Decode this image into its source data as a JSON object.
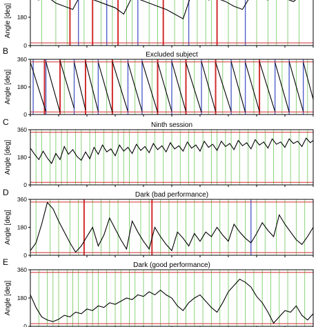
{
  "chart_data": [
    {
      "type": "line",
      "letter": "",
      "title": "",
      "ylabel": "Angle [deg]",
      "yticks": [
        "0",
        "180"
      ],
      "ylim": [
        0,
        360
      ],
      "red_hlines": [
        17,
        343
      ],
      "x": [
        0,
        3,
        6,
        9,
        12,
        15,
        18,
        21,
        24,
        27,
        30,
        33,
        36,
        39,
        42,
        45,
        48,
        51,
        54,
        57,
        60,
        63,
        66,
        69,
        72,
        75,
        78,
        81,
        84,
        87,
        90,
        93,
        96,
        99
      ],
      "values": [
        300,
        290,
        310,
        270,
        250,
        230,
        330,
        300,
        280,
        260,
        240,
        200,
        310,
        290,
        270,
        250,
        230,
        200,
        170,
        330,
        310,
        290,
        300,
        280,
        250,
        230,
        320,
        300,
        290,
        310,
        300,
        280,
        320,
        300
      ],
      "blue_lines": [
        17,
        27,
        38,
        56,
        76
      ],
      "red_lines": [
        14,
        22,
        31,
        47,
        66
      ],
      "green_lines": [
        4,
        9,
        13,
        19,
        25,
        29,
        34,
        36,
        42,
        45,
        51,
        54,
        59,
        62,
        64,
        70,
        73,
        80,
        84,
        87,
        91,
        95
      ]
    },
    {
      "type": "line",
      "letter": "B",
      "title": "Excluded subject",
      "ylabel": "Angle [deg]",
      "yticks": [
        "0",
        "180",
        "360"
      ],
      "ylim": [
        0,
        360
      ],
      "red_hlines": [
        17,
        343
      ],
      "sawtooth_cycles": [
        [
          0,
          5.5,
          340,
          20
        ],
        [
          5.5,
          10.5,
          345,
          15
        ],
        [
          10.5,
          15.5,
          350,
          40
        ],
        [
          15.5,
          19.5,
          340,
          30
        ],
        [
          19.5,
          24,
          345,
          20
        ],
        [
          24,
          29,
          340,
          15
        ],
        [
          29,
          34.5,
          345,
          20
        ],
        [
          34.5,
          39.5,
          340,
          20
        ],
        [
          39.5,
          45,
          345,
          15
        ],
        [
          45,
          50,
          340,
          20
        ],
        [
          50,
          55,
          345,
          20
        ],
        [
          55,
          60.5,
          340,
          15
        ],
        [
          60.5,
          65.5,
          345,
          20
        ],
        [
          65.5,
          71,
          340,
          20
        ],
        [
          71,
          76,
          345,
          15
        ],
        [
          76,
          81,
          340,
          20
        ],
        [
          81,
          86.5,
          345,
          20
        ],
        [
          86.5,
          91.5,
          340,
          15
        ],
        [
          91.5,
          96.5,
          345,
          20
        ],
        [
          96.5,
          100,
          340,
          100
        ]
      ],
      "blue_lines": [
        1,
        5.5,
        15.5,
        24,
        34.5,
        39.5,
        50,
        60.5,
        71,
        76,
        86.5,
        91.5,
        96.5
      ],
      "red_lines": [
        5,
        10.5,
        19.5,
        29,
        45,
        55,
        65.5,
        81
      ],
      "green_lines": [
        12,
        22,
        27,
        32,
        37,
        43,
        48,
        53,
        58,
        63,
        68,
        74,
        79,
        84,
        89,
        94,
        98
      ]
    },
    {
      "type": "line",
      "letter": "C",
      "title": "Ninth session",
      "ylabel": "Angle [deg]",
      "yticks": [
        "0",
        "180",
        "360"
      ],
      "ylim": [
        0,
        360
      ],
      "red_hlines": [
        17,
        343
      ],
      "x": [
        0,
        1.5,
        3,
        4.5,
        6,
        7.5,
        9,
        10.5,
        12,
        13.5,
        15,
        16.5,
        18,
        19.5,
        21,
        22.5,
        24,
        25.5,
        27,
        28.5,
        30,
        31.5,
        33,
        34.5,
        36,
        37.5,
        39,
        40.5,
        42,
        43.5,
        45,
        46.5,
        48,
        49.5,
        51,
        52.5,
        54,
        55.5,
        57,
        58.5,
        60,
        61.5,
        63,
        64.5,
        66,
        67.5,
        69,
        70.5,
        72,
        73.5,
        75,
        76.5,
        78,
        79.5,
        81,
        82.5,
        84,
        85.5,
        87,
        88.5,
        90,
        91.5,
        93,
        94.5,
        96,
        97.5,
        99,
        100
      ],
      "values": [
        240,
        200,
        165,
        220,
        175,
        140,
        205,
        165,
        250,
        200,
        230,
        185,
        160,
        215,
        170,
        245,
        200,
        260,
        215,
        235,
        190,
        260,
        220,
        245,
        205,
        265,
        225,
        250,
        210,
        270,
        230,
        255,
        215,
        275,
        235,
        255,
        220,
        280,
        240,
        260,
        220,
        285,
        245,
        265,
        225,
        285,
        250,
        270,
        230,
        290,
        255,
        275,
        235,
        295,
        260,
        280,
        240,
        300,
        265,
        280,
        245,
        300,
        270,
        285,
        250,
        305,
        275,
        290
      ],
      "blue_lines": [],
      "red_lines": [],
      "green_lines": [
        2,
        4,
        7,
        9,
        11,
        13,
        16,
        18,
        21,
        23,
        26,
        29,
        31,
        33,
        35,
        38,
        41,
        44,
        47,
        50,
        53,
        56,
        58,
        61,
        64,
        66,
        69,
        71,
        74,
        77,
        80,
        83,
        86,
        89,
        92,
        95,
        98
      ]
    },
    {
      "type": "line",
      "letter": "D",
      "title": "Dark (bad performance)",
      "ylabel": "Angle [deg]",
      "yticks": [
        "0",
        "180",
        "360"
      ],
      "ylim": [
        0,
        360
      ],
      "red_hlines": [
        17,
        343
      ],
      "x": [
        0,
        2,
        4,
        6,
        8,
        10,
        12,
        14,
        16,
        18,
        20,
        22,
        24,
        26,
        28,
        30,
        32,
        34,
        36,
        38,
        40,
        42,
        44,
        46,
        48,
        50,
        52,
        54,
        56,
        58,
        60,
        62,
        64,
        66,
        68,
        70,
        72,
        74,
        76,
        78,
        80,
        82,
        84,
        86,
        88,
        90,
        92,
        94,
        96,
        98,
        100
      ],
      "values": [
        30,
        80,
        200,
        340,
        300,
        220,
        150,
        80,
        20,
        60,
        120,
        180,
        60,
        130,
        240,
        170,
        100,
        40,
        220,
        150,
        90,
        40,
        180,
        120,
        70,
        30,
        150,
        110,
        60,
        140,
        90,
        150,
        120,
        180,
        130,
        90,
        200,
        150,
        110,
        80,
        140,
        210,
        160,
        120,
        260,
        200,
        150,
        100,
        70,
        120,
        180
      ],
      "blue_lines": [
        78
      ],
      "red_lines": [
        19,
        43
      ],
      "green_lines": [
        2,
        7,
        10,
        14,
        17,
        22,
        25,
        28,
        31,
        35,
        39,
        42,
        46,
        49,
        52,
        55,
        58,
        61,
        64,
        67,
        70,
        73,
        76,
        80,
        83,
        87,
        90,
        94,
        97
      ]
    },
    {
      "type": "line",
      "letter": "E",
      "title": "Dark (good performance)",
      "ylabel": "Angle [deg]",
      "yticks": [
        "0",
        "180",
        "360"
      ],
      "ylim": [
        0,
        360
      ],
      "red_hlines": [
        17,
        343
      ],
      "x": [
        0,
        2,
        4,
        6,
        8,
        10,
        12,
        14,
        16,
        18,
        20,
        22,
        24,
        26,
        28,
        30,
        32,
        34,
        36,
        38,
        40,
        42,
        44,
        46,
        48,
        50,
        52,
        54,
        56,
        58,
        60,
        62,
        64,
        66,
        68,
        70,
        72,
        74,
        76,
        78,
        80,
        82,
        84,
        86,
        88,
        90,
        92,
        94,
        96,
        98,
        100
      ],
      "values": [
        200,
        120,
        60,
        40,
        30,
        45,
        70,
        60,
        90,
        80,
        110,
        100,
        130,
        120,
        150,
        140,
        160,
        180,
        170,
        200,
        190,
        220,
        200,
        230,
        200,
        180,
        130,
        100,
        150,
        180,
        200,
        160,
        120,
        90,
        150,
        220,
        260,
        300,
        280,
        250,
        190,
        150,
        90,
        20,
        60,
        100,
        90,
        130,
        70,
        40,
        80
      ],
      "blue_lines": [],
      "red_lines": [],
      "green_lines": [
        3,
        6,
        8,
        10,
        13,
        15,
        17,
        20,
        22,
        24,
        27,
        30,
        32,
        35,
        37,
        40,
        43,
        46,
        49,
        52,
        55,
        58,
        61,
        64,
        67,
        70,
        73,
        76,
        79,
        82,
        85,
        88,
        91,
        94,
        97
      ]
    }
  ],
  "colors": {
    "trace": "#000000",
    "green_line": "#7ccd6b",
    "red_line": "#d22c2c",
    "blue_line": "#5062c8",
    "red_hline": "#d22c2c"
  }
}
